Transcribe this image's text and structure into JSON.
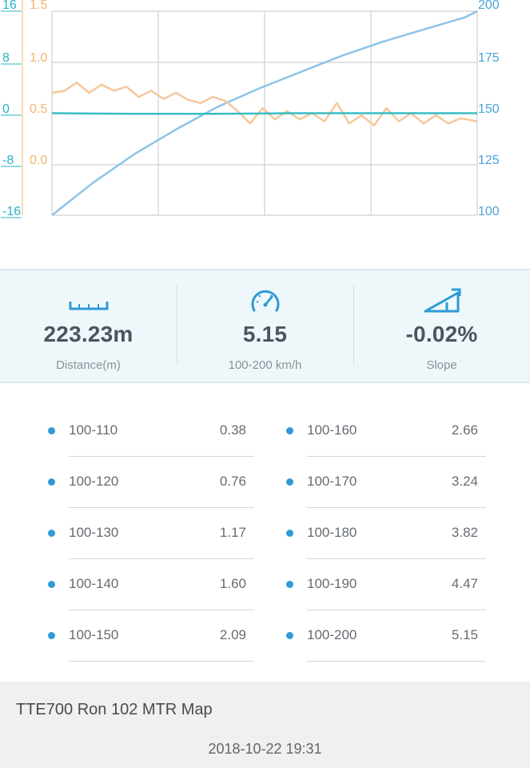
{
  "chart_data": {
    "type": "line",
    "axes": {
      "slope_axis": {
        "ticks": [
          "16",
          "8",
          "0",
          "-8",
          "-16"
        ],
        "range": [
          -16,
          16
        ],
        "color": "#2ab3c6"
      },
      "accel_axis": {
        "ticks": [
          "1.5",
          "1.0",
          "0.5",
          "0.0"
        ],
        "range": [
          -0.5,
          1.5
        ],
        "color": "#f1b36f"
      },
      "speed_axis": {
        "ticks": [
          "200",
          "175",
          "150",
          "125",
          "100"
        ],
        "range": [
          100,
          200
        ],
        "color": "#4aa3d8"
      }
    },
    "grid": true,
    "series": [
      {
        "axis": "speed_axis",
        "color": "#8cc4e8",
        "x": [
          0,
          0.5,
          1,
          1.5,
          2,
          2.5,
          3,
          3.5,
          4,
          4.5,
          5,
          5.15
        ],
        "y": [
          100,
          116,
          130,
          142,
          153,
          162,
          170,
          178,
          185,
          191,
          197,
          200
        ]
      },
      {
        "axis": "accel_axis",
        "color": "#f5c79a",
        "x": [
          0,
          0.15,
          0.3,
          0.45,
          0.6,
          0.75,
          0.9,
          1.05,
          1.2,
          1.35,
          1.5,
          1.65,
          1.8,
          1.95,
          2.1,
          2.25,
          2.4,
          2.55,
          2.7,
          2.85,
          3.0,
          3.15,
          3.3,
          3.45,
          3.6,
          3.75,
          3.9,
          4.05,
          4.2,
          4.35,
          4.5,
          4.65,
          4.8,
          4.95,
          5.15
        ],
        "y": [
          0.7,
          0.72,
          0.8,
          0.7,
          0.78,
          0.72,
          0.76,
          0.66,
          0.72,
          0.64,
          0.7,
          0.63,
          0.6,
          0.66,
          0.62,
          0.52,
          0.4,
          0.55,
          0.44,
          0.52,
          0.44,
          0.5,
          0.42,
          0.6,
          0.4,
          0.48,
          0.38,
          0.55,
          0.42,
          0.5,
          0.4,
          0.48,
          0.4,
          0.45,
          0.42
        ]
      },
      {
        "axis": "slope_axis",
        "color": "#38bdc4",
        "x": [
          0,
          1,
          2,
          3,
          4,
          5.15
        ],
        "y": [
          0,
          -0.1,
          -0.1,
          0,
          0,
          0
        ]
      }
    ]
  },
  "stats": [
    {
      "icon": "ruler-icon",
      "value": "223.23m",
      "label": "Distance(m)"
    },
    {
      "icon": "speedometer-icon",
      "value": "5.15",
      "label": "100-200 km/h"
    },
    {
      "icon": "slope-icon",
      "value": "-0.02%",
      "label": "Slope"
    }
  ],
  "splits": [
    {
      "range": "100-110",
      "time": "0.38"
    },
    {
      "range": "100-160",
      "time": "2.66"
    },
    {
      "range": "100-120",
      "time": "0.76"
    },
    {
      "range": "100-170",
      "time": "3.24"
    },
    {
      "range": "100-130",
      "time": "1.17"
    },
    {
      "range": "100-180",
      "time": "3.82"
    },
    {
      "range": "100-140",
      "time": "1.60"
    },
    {
      "range": "100-190",
      "time": "4.47"
    },
    {
      "range": "100-150",
      "time": "2.09"
    },
    {
      "range": "100-200",
      "time": "5.15"
    }
  ],
  "footer": {
    "title": "TTE700 Ron 102 MTR Map",
    "date": "2018-10-22 19:31"
  },
  "colors": {
    "accent": "#2f9bd6",
    "panel_bg": "#eef8fb"
  }
}
